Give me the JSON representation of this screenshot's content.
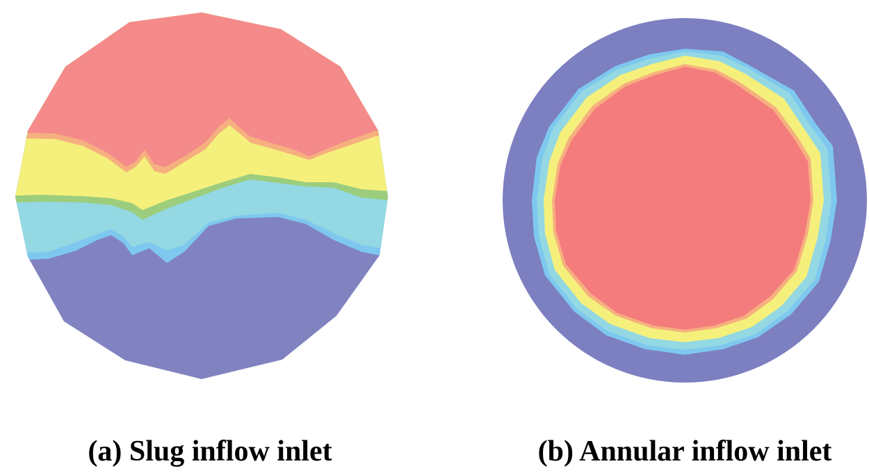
{
  "panels": [
    {
      "caption": "(a) Slug inflow inlet",
      "pattern": "slug"
    },
    {
      "caption": "(b) Annular inflow inlet",
      "pattern": "annular"
    }
  ],
  "colors": {
    "background": "#ffffff",
    "blue": "#8083c0",
    "annular_blue": "#7c7fc0",
    "cyan": "#93d8e2",
    "light_blue": "#7ec8ef",
    "green": "#9ccd7c",
    "yellow": "#f5f07c",
    "orange": "#f6b07f",
    "red": "#f48a89",
    "annular_red": "#f47c7c"
  }
}
